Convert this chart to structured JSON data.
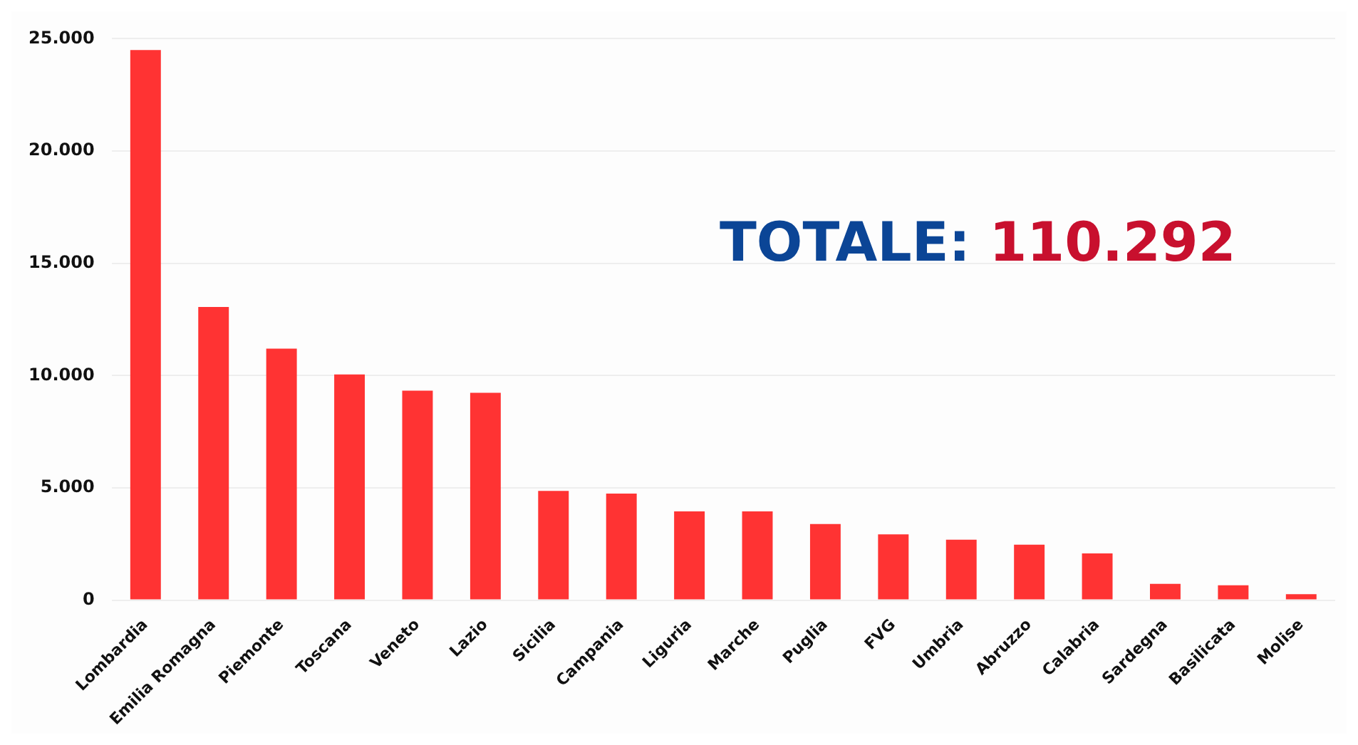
{
  "chart_data": {
    "type": "bar",
    "categories": [
      "Lombardia",
      "Emilia Romagna",
      "Piemonte",
      "Toscana",
      "Veneto",
      "Lazio",
      "Sicilia",
      "Campania",
      "Liguria",
      "Marche",
      "Puglia",
      "FVG",
      "Umbria",
      "Abruzzo",
      "Calabria",
      "Sardegna",
      "Basilicata",
      "Molise"
    ],
    "values": [
      24500,
      13050,
      11200,
      10050,
      9330,
      9230,
      4860,
      4740,
      3950,
      3950,
      3390,
      2930,
      2690,
      2470,
      2080,
      720,
      660,
      260
    ],
    "color": "#ff3333",
    "ylim": [
      0,
      25000
    ],
    "yticks": [
      {
        "value": 0,
        "label": "0"
      },
      {
        "value": 5000,
        "label": "5.000"
      },
      {
        "value": 10000,
        "label": "10.000"
      },
      {
        "value": 15000,
        "label": "15.000"
      },
      {
        "value": 20000,
        "label": "20.000"
      },
      {
        "value": 25000,
        "label": "25.000"
      }
    ],
    "grid": "y",
    "legend": false,
    "annotations": [
      "TOTALE: 110.292"
    ]
  }
}
